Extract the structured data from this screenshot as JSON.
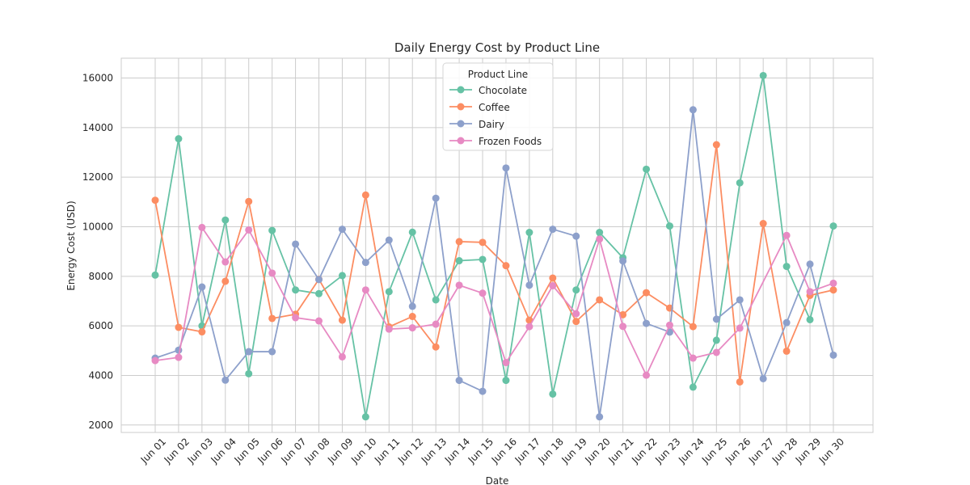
{
  "chart_data": {
    "type": "line",
    "title": "Daily Energy Cost by Product Line",
    "xlabel": "Date",
    "ylabel": "Energy Cost (USD)",
    "ylim": [
      1700,
      16800
    ],
    "yticks": [
      2000,
      4000,
      6000,
      8000,
      10000,
      12000,
      14000,
      16000
    ],
    "grid": true,
    "legend": {
      "title": "Product Line",
      "placement": "top-center"
    },
    "categories": [
      "Jun 01",
      "Jun 02",
      "Jun 03",
      "Jun 04",
      "Jun 05",
      "Jun 06",
      "Jun 07",
      "Jun 08",
      "Jun 09",
      "Jun 10",
      "Jun 11",
      "Jun 12",
      "Jun 13",
      "Jun 14",
      "Jun 15",
      "Jun 16",
      "Jun 17",
      "Jun 18",
      "Jun 19",
      "Jun 20",
      "Jun 21",
      "Jun 22",
      "Jun 23",
      "Jun 24",
      "Jun 25",
      "Jun 26",
      "Jun 27",
      "Jun 28",
      "Jun 29",
      "Jun 30"
    ],
    "series": [
      {
        "name": "Chocolate",
        "color": "#66c2a5",
        "values": [
          8050,
          13550,
          6000,
          10270,
          4070,
          9850,
          7450,
          7300,
          8030,
          2330,
          7380,
          9780,
          7050,
          8630,
          8680,
          3800,
          9770,
          3250,
          7450,
          9770,
          8750,
          12320,
          10030,
          3530,
          5420,
          11770,
          16100,
          8400,
          6250,
          10030
        ]
      },
      {
        "name": "Coffee",
        "color": "#fc8d62",
        "values": [
          11070,
          5940,
          5760,
          7800,
          11020,
          6300,
          6470,
          7880,
          6230,
          11280,
          5960,
          6380,
          5150,
          9400,
          9370,
          8430,
          6230,
          7930,
          6180,
          7050,
          6450,
          7340,
          6720,
          5970,
          13310,
          3740,
          10130,
          4980,
          7230,
          7450
        ]
      },
      {
        "name": "Dairy",
        "color": "#8da0cb",
        "values": [
          4700,
          5020,
          7570,
          3810,
          4960,
          4960,
          9300,
          7870,
          9900,
          8560,
          9460,
          6790,
          11150,
          3800,
          3360,
          12370,
          7640,
          9900,
          9620,
          2330,
          8620,
          6100,
          5750,
          14720,
          6270,
          7050,
          3870,
          6130,
          8490,
          4820
        ]
      },
      {
        "name": "Frozen Foods",
        "color": "#e78ac3",
        "values": [
          4600,
          4730,
          9970,
          8580,
          9870,
          8130,
          6330,
          6200,
          4750,
          7450,
          5870,
          5920,
          6070,
          7640,
          7320,
          4520,
          5970,
          7620,
          6490,
          9500,
          5980,
          4010,
          6030,
          4700,
          4930,
          5910,
          null,
          9650,
          7380,
          7720
        ]
      }
    ]
  }
}
